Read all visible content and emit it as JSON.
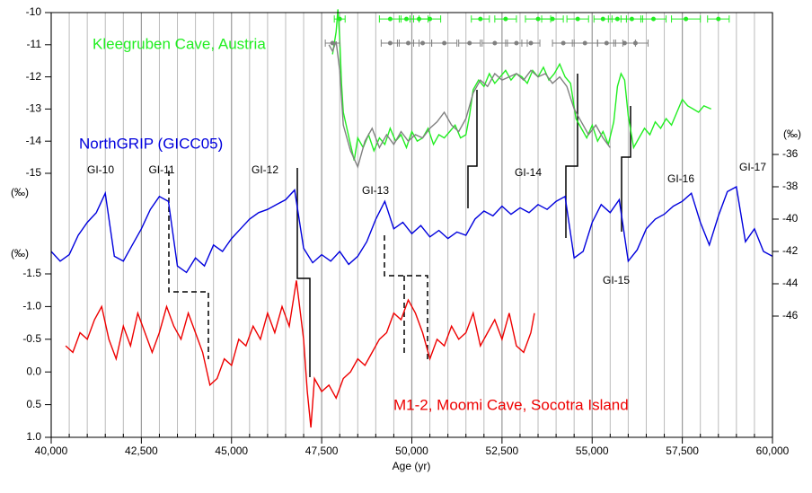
{
  "chart_data": [
    {
      "type": "line",
      "ylim": [
        -15,
        -10
      ],
      "yticks": [
        -10,
        -11,
        -12,
        -13,
        -14,
        -15
      ],
      "ylabel": "(‰)",
      "series": [
        {
          "name": "Kleegruben Cave, Austria",
          "color": "#22ee22",
          "x": [
            47800,
            47900,
            47950,
            48000,
            48050,
            48100,
            48200,
            48300,
            48400,
            48500,
            48650,
            48800,
            48950,
            49100,
            49250,
            49400,
            49550,
            49700,
            49850,
            50000,
            50150,
            50300,
            50450,
            50600,
            50750,
            50900,
            51050,
            51200,
            51350,
            51500,
            51600,
            51700,
            51850,
            52000,
            52150,
            52300,
            52450,
            52600,
            52750,
            52900,
            53050,
            53200,
            53350,
            53500,
            53650,
            53800,
            53950,
            54100,
            54250,
            54400,
            54550,
            54700,
            54850,
            55000,
            55150,
            55300,
            55450,
            55600,
            55700,
            55800,
            55900,
            56000,
            56150,
            56300,
            56450,
            56600,
            56750,
            56900,
            57050,
            57200,
            57350,
            57500,
            57650,
            57800,
            57950,
            58100,
            58300
          ],
          "values": [
            -11.3,
            -10.6,
            -9.9,
            -10.8,
            -12.2,
            -13.1,
            -13.6,
            -14.1,
            -14.6,
            -13.9,
            -14.2,
            -13.8,
            -14.3,
            -13.9,
            -14.1,
            -13.6,
            -14.0,
            -13.8,
            -14.2,
            -13.7,
            -14.0,
            -13.9,
            -13.6,
            -14.1,
            -13.8,
            -13.9,
            -13.7,
            -13.5,
            -13.9,
            -13.8,
            -13.2,
            -12.4,
            -12.1,
            -12.3,
            -11.9,
            -12.2,
            -12.0,
            -11.8,
            -12.1,
            -11.9,
            -12.0,
            -12.2,
            -11.8,
            -12.0,
            -11.7,
            -12.1,
            -11.9,
            -11.6,
            -12.0,
            -12.2,
            -13.3,
            -13.6,
            -13.9,
            -13.5,
            -14.0,
            -13.7,
            -14.1,
            -13.4,
            -12.3,
            -11.9,
            -12.1,
            -13.2,
            -14.2,
            -13.9,
            -13.6,
            -13.8,
            -13.4,
            -13.6,
            -13.3,
            -13.5,
            -13.1,
            -12.7,
            -12.9,
            -13.0,
            -13.1,
            -12.9,
            -13.0
          ]
        },
        {
          "color": "#808080",
          "x": [
            47700,
            47800,
            47900,
            48000,
            48100,
            48300,
            48500,
            48700,
            48900,
            49100,
            49300,
            49500,
            49700,
            49900,
            50100,
            50300,
            50500,
            50700,
            50900,
            51100,
            51300,
            51500,
            51700,
            51900,
            52100,
            52300,
            52500,
            52700,
            52900,
            53100,
            53300,
            53500,
            53700,
            53900,
            54100,
            54300,
            54500,
            54700,
            54900,
            55100,
            55300,
            55500
          ],
          "values": [
            -11.0,
            -11.2,
            -10.9,
            -11.8,
            -13.5,
            -14.3,
            -14.8,
            -14.0,
            -13.6,
            -14.2,
            -13.8,
            -14.1,
            -13.7,
            -14.0,
            -13.8,
            -13.9,
            -13.6,
            -13.4,
            -13.1,
            -13.5,
            -13.7,
            -13.3,
            -12.5,
            -12.1,
            -12.3,
            -11.9,
            -12.1,
            -12.0,
            -11.9,
            -12.1,
            -11.8,
            -12.0,
            -11.9,
            -12.2,
            -12.0,
            -12.3,
            -13.0,
            -13.4,
            -13.8,
            -13.5,
            -13.9,
            -14.2
          ]
        }
      ],
      "dates": [
        {
          "color": "#22ee22",
          "y": -10.2,
          "x": [
            48000,
            49400,
            49850,
            50200,
            50500,
            51900,
            52600,
            53500,
            53900,
            54600,
            55300,
            55700,
            56100,
            56700,
            57600,
            58500
          ],
          "xerr": [
            150,
            300,
            200,
            250,
            300,
            250,
            300,
            350,
            300,
            300,
            250,
            250,
            300,
            350,
            400,
            300
          ]
        },
        {
          "color": "#808080",
          "y": -10.95,
          "x": [
            47800,
            49400,
            49900,
            50300,
            50900,
            51600,
            52300,
            52900,
            53300,
            54200,
            54800,
            55400,
            55900,
            56200
          ],
          "xerr": [
            200,
            250,
            300,
            250,
            350,
            300,
            350,
            300,
            250,
            300,
            350,
            250,
            300,
            350
          ]
        }
      ]
    },
    {
      "type": "line",
      "ylim": [
        -46,
        -36
      ],
      "yticks": [
        -36,
        -38,
        -40,
        -42,
        -44,
        -46
      ],
      "ylabel": "(‰)",
      "annotations": [
        "GI-10",
        "GI-11",
        "GI-12",
        "GI-13",
        "GI-14",
        "GI-15",
        "GI-16",
        "GI-17"
      ],
      "series": [
        {
          "name": "NorthGRIP (GICC05)",
          "color": "#0000dd",
          "x": [
            40000,
            40250,
            40500,
            40750,
            41000,
            41250,
            41500,
            41750,
            42000,
            42250,
            42500,
            42750,
            43000,
            43250,
            43500,
            43750,
            44000,
            44250,
            44500,
            44750,
            45000,
            45250,
            45500,
            45750,
            46000,
            46250,
            46500,
            46750,
            47000,
            47250,
            47500,
            47750,
            48000,
            48250,
            48500,
            48750,
            49000,
            49250,
            49500,
            49750,
            50000,
            50250,
            50500,
            50750,
            51000,
            51250,
            51500,
            51750,
            52000,
            52250,
            52500,
            52750,
            53000,
            53250,
            53500,
            53750,
            54000,
            54250,
            54500,
            54750,
            55000,
            55250,
            55500,
            55750,
            56000,
            56250,
            56500,
            56750,
            57000,
            57250,
            57500,
            57750,
            58000,
            58250,
            58500,
            58750,
            59000,
            59250,
            59500,
            59750,
            60000
          ],
          "values": [
            -42.0,
            -42.6,
            -42.2,
            -41.0,
            -40.2,
            -39.6,
            -38.4,
            -42.3,
            -42.6,
            -41.6,
            -40.6,
            -39.4,
            -38.6,
            -38.9,
            -42.9,
            -43.3,
            -42.4,
            -42.9,
            -41.6,
            -42.0,
            -41.2,
            -40.6,
            -40.0,
            -39.6,
            -39.4,
            -39.1,
            -38.8,
            -38.2,
            -41.8,
            -42.7,
            -42.2,
            -42.6,
            -42.0,
            -42.8,
            -42.3,
            -41.4,
            -40.0,
            -38.9,
            -40.6,
            -40.2,
            -40.9,
            -40.4,
            -41.1,
            -40.7,
            -41.2,
            -40.8,
            -41.0,
            -40.0,
            -39.5,
            -39.8,
            -39.2,
            -39.7,
            -39.3,
            -39.6,
            -39.1,
            -39.4,
            -38.9,
            -38.6,
            -42.4,
            -42.0,
            -40.2,
            -39.1,
            -39.6,
            -38.8,
            -42.6,
            -41.9,
            -40.6,
            -40.0,
            -39.7,
            -39.2,
            -38.9,
            -38.4,
            -40.2,
            -41.6,
            -39.8,
            -38.3,
            -38.0,
            -41.4,
            -40.6,
            -42.0,
            -42.3
          ]
        }
      ]
    },
    {
      "type": "line",
      "ylim": [
        1.0,
        -1.5
      ],
      "yticks": [
        {
          "value": -1.5,
          "label": "-1.5"
        },
        {
          "value": -1.0,
          "label": "-1.0"
        },
        {
          "value": -0.5,
          "label": "-0.5"
        },
        {
          "value": 0.0,
          "label": "0.0"
        },
        {
          "value": 0.5,
          "label": "0.5"
        },
        {
          "value": 1.0,
          "label": "1.0"
        }
      ],
      "ylabel": "(‰)",
      "xlim": [
        40000,
        60000
      ],
      "xticks": [
        {
          "value": 40000,
          "label": "40,000"
        },
        {
          "value": 42500,
          "label": "42,500"
        },
        {
          "value": 45000,
          "label": "45,000"
        },
        {
          "value": 47500,
          "label": "47,500"
        },
        {
          "value": 50000,
          "label": "50,000"
        },
        {
          "value": 52500,
          "label": "52,500"
        },
        {
          "value": 55000,
          "label": "55,000"
        },
        {
          "value": 57500,
          "label": "57,500"
        },
        {
          "value": 60000,
          "label": "60,000"
        }
      ],
      "xminor": [
        40500,
        41000,
        41500,
        42000,
        43000,
        43500,
        44000,
        44500,
        45500,
        46000,
        46500,
        47000,
        48000,
        48500,
        49000,
        49500,
        50500,
        51000,
        51500,
        52000,
        53000,
        53500,
        54000,
        54500,
        55500,
        56000,
        56500,
        57000,
        58000,
        58500,
        59000,
        59500
      ],
      "grid": true,
      "xlabel": "Age (yr)",
      "series": [
        {
          "name": "M1-2, Moomi Cave, Socotra Island",
          "color": "#ee0000",
          "x": [
            40400,
            40600,
            40800,
            41000,
            41200,
            41400,
            41600,
            41800,
            42000,
            42200,
            42400,
            42600,
            42800,
            43000,
            43200,
            43400,
            43600,
            43800,
            44000,
            44200,
            44400,
            44600,
            44800,
            45000,
            45200,
            45400,
            45600,
            45800,
            46000,
            46200,
            46400,
            46600,
            46800,
            47000,
            47100,
            47200,
            47300,
            47500,
            47700,
            47900,
            48100,
            48300,
            48500,
            48700,
            48900,
            49100,
            49300,
            49500,
            49700,
            49900,
            50100,
            50300,
            50500,
            50700,
            50900,
            51100,
            51300,
            51500,
            51700,
            51900,
            52100,
            52300,
            52500,
            52700,
            52900,
            53100,
            53300,
            53400
          ],
          "values": [
            -0.4,
            -0.3,
            -0.6,
            -0.5,
            -0.8,
            -1.0,
            -0.5,
            -0.2,
            -0.7,
            -0.4,
            -0.9,
            -0.6,
            -0.3,
            -0.6,
            -1.0,
            -0.7,
            -0.5,
            -0.9,
            -0.6,
            -0.3,
            0.2,
            0.1,
            -0.2,
            -0.1,
            -0.5,
            -0.4,
            -0.7,
            -0.5,
            -0.9,
            -0.6,
            -1.0,
            -0.7,
            -1.4,
            -0.5,
            0.3,
            0.85,
            0.1,
            0.3,
            0.2,
            0.4,
            0.1,
            0.0,
            -0.2,
            -0.1,
            -0.3,
            -0.5,
            -0.6,
            -0.9,
            -0.8,
            -1.1,
            -0.9,
            -0.6,
            -0.2,
            -0.5,
            -0.4,
            -0.7,
            -0.5,
            -0.6,
            -0.9,
            -0.4,
            -0.6,
            -0.8,
            -0.5,
            -0.9,
            -0.4,
            -0.3,
            -0.6,
            -0.9
          ]
        }
      ]
    }
  ]
}
